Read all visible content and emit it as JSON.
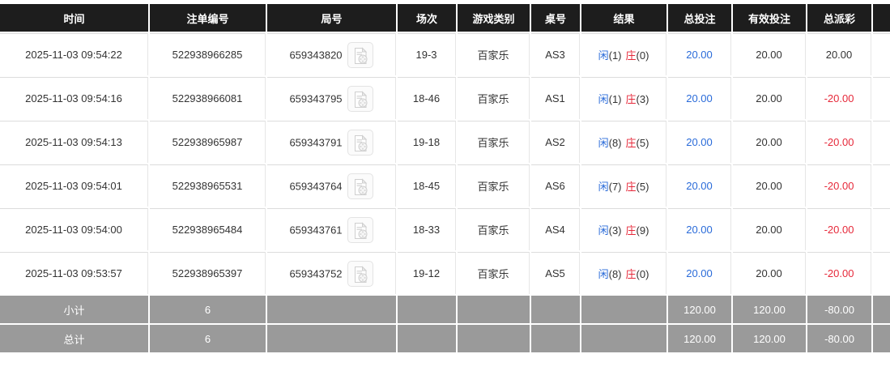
{
  "table": {
    "columns": [
      {
        "key": "time",
        "label": "时间"
      },
      {
        "key": "order_no",
        "label": "注单编号"
      },
      {
        "key": "round_no",
        "label": "局号"
      },
      {
        "key": "session",
        "label": "场次"
      },
      {
        "key": "game_type",
        "label": "游戏类别"
      },
      {
        "key": "table_no",
        "label": "桌号"
      },
      {
        "key": "result",
        "label": "结果"
      },
      {
        "key": "total_bet",
        "label": "总投注"
      },
      {
        "key": "valid_bet",
        "label": "有效投注"
      },
      {
        "key": "total_payout",
        "label": "总派彩"
      },
      {
        "key": "extra",
        "label": ""
      }
    ],
    "result_labels": {
      "player": "闲",
      "banker": "庄"
    },
    "rows": [
      {
        "time": "2025-11-03 09:54:22",
        "order_no": "522938966285",
        "round_no": "659343820",
        "session": "19-3",
        "game_type": "百家乐",
        "table_no": "AS3",
        "player": "1",
        "banker": "0",
        "total_bet": "20.00",
        "valid_bet": "20.00",
        "total_payout": "20.00"
      },
      {
        "time": "2025-11-03 09:54:16",
        "order_no": "522938966081",
        "round_no": "659343795",
        "session": "18-46",
        "game_type": "百家乐",
        "table_no": "AS1",
        "player": "1",
        "banker": "3",
        "total_bet": "20.00",
        "valid_bet": "20.00",
        "total_payout": "-20.00"
      },
      {
        "time": "2025-11-03 09:54:13",
        "order_no": "522938965987",
        "round_no": "659343791",
        "session": "19-18",
        "game_type": "百家乐",
        "table_no": "AS2",
        "player": "8",
        "banker": "5",
        "total_bet": "20.00",
        "valid_bet": "20.00",
        "total_payout": "-20.00"
      },
      {
        "time": "2025-11-03 09:54:01",
        "order_no": "522938965531",
        "round_no": "659343764",
        "session": "18-45",
        "game_type": "百家乐",
        "table_no": "AS6",
        "player": "7",
        "banker": "5",
        "total_bet": "20.00",
        "valid_bet": "20.00",
        "total_payout": "-20.00"
      },
      {
        "time": "2025-11-03 09:54:00",
        "order_no": "522938965484",
        "round_no": "659343761",
        "session": "18-33",
        "game_type": "百家乐",
        "table_no": "AS4",
        "player": "3",
        "banker": "9",
        "total_bet": "20.00",
        "valid_bet": "20.00",
        "total_payout": "-20.00"
      },
      {
        "time": "2025-11-03 09:53:57",
        "order_no": "522938965397",
        "round_no": "659343752",
        "session": "19-12",
        "game_type": "百家乐",
        "table_no": "AS5",
        "player": "8",
        "banker": "0",
        "total_bet": "20.00",
        "valid_bet": "20.00",
        "total_payout": "-20.00"
      }
    ],
    "summary_rows": [
      {
        "label": "小计",
        "count": "6",
        "total_bet": "120.00",
        "valid_bet": "120.00",
        "total_payout": "-80.00"
      },
      {
        "label": "总计",
        "count": "6",
        "total_bet": "120.00",
        "valid_bet": "120.00",
        "total_payout": "-80.00"
      }
    ]
  },
  "colors": {
    "header_bg": "#1d1d1d",
    "summary_bg": "#9a9a9a",
    "accent_blue": "#2a6bd9",
    "accent_red": "#e6293a"
  }
}
